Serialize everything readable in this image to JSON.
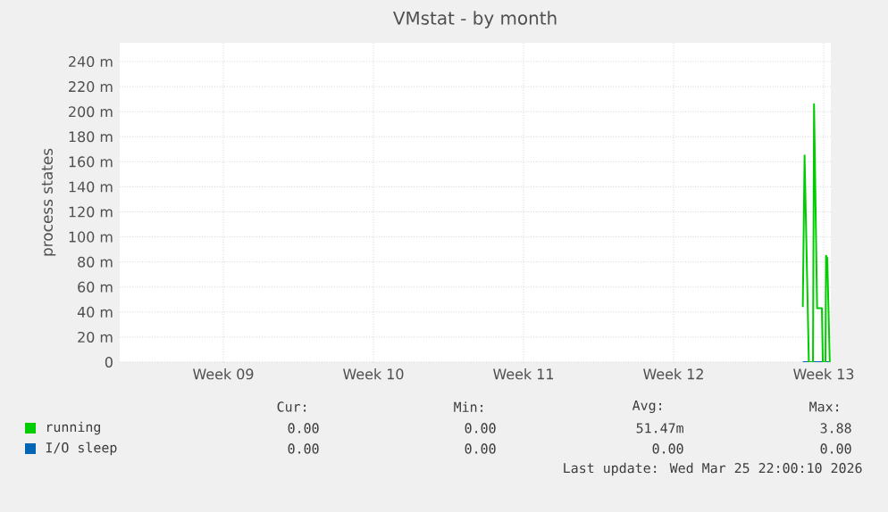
{
  "chart_data": {
    "type": "line",
    "title": "VMstat - by month",
    "ylabel": "process states",
    "x": [
      "2026-03-25T12:36",
      "2026-03-25T14:36",
      "2026-03-25T19:24",
      "2026-03-26T00:00",
      "2026-03-26T01:12",
      "2026-03-26T04:36",
      "2026-03-26T10:00",
      "2026-03-26T11:00",
      "2026-03-26T14:00",
      "2026-03-26T14:36",
      "2026-03-26T16:00",
      "2026-03-26T18:48"
    ],
    "series": [
      {
        "name": "running",
        "color": "#00cc00",
        "values": [
          44,
          165,
          0,
          0,
          206,
          43,
          43,
          0,
          0,
          85,
          83,
          0
        ]
      },
      {
        "name": "I/O sleep",
        "color": "#0066b3",
        "values": [
          0,
          0,
          0,
          0,
          0,
          0,
          0,
          0,
          0,
          0,
          0,
          0
        ]
      }
    ],
    "xlim": [
      "2026-02-21T16:00",
      "2026-03-26T20:00"
    ],
    "xticks": [
      {
        "value": "2026-02-26T12:00",
        "label": "Week 09"
      },
      {
        "value": "2026-03-05T12:00",
        "label": "Week 10"
      },
      {
        "value": "2026-03-12T12:00",
        "label": "Week 11"
      },
      {
        "value": "2026-03-19T12:00",
        "label": "Week 12"
      },
      {
        "value": "2026-03-26T12:00",
        "label": "Week 13"
      }
    ],
    "ylim": [
      0,
      255
    ],
    "yticks": [
      0,
      {
        "value": 20,
        "label": "20 m"
      },
      {
        "value": 40,
        "label": "40 m"
      },
      {
        "value": 60,
        "label": "60 m"
      },
      {
        "value": 80,
        "label": "80 m"
      },
      {
        "value": 100,
        "label": "100 m"
      },
      {
        "value": 120,
        "label": "120 m"
      },
      {
        "value": 140,
        "label": "140 m"
      },
      {
        "value": 160,
        "label": "160 m"
      },
      {
        "value": 180,
        "label": "180 m"
      },
      {
        "value": 200,
        "label": "200 m"
      },
      {
        "value": 220,
        "label": "220 m"
      },
      {
        "value": 240,
        "label": "240 m"
      }
    ],
    "grid": true,
    "legend": "bottom",
    "marker": "none",
    "line_style": "solid",
    "annotations": [
      "Cur:",
      "Min:",
      "Avg:",
      "Max:",
      "0.00",
      "0.00",
      "51.47m",
      "3.88",
      "0.00",
      "0.00",
      "0.00",
      "0.00",
      "Last update: Wed Mar 25 22:00:10 2026"
    ]
  }
}
